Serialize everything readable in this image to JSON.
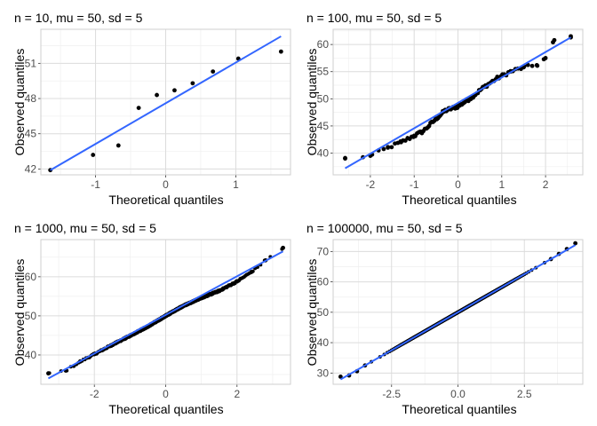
{
  "colors": {
    "point": "#000000",
    "line": "#3366ff",
    "grid_major": "#dcdcdc",
    "grid_minor": "#efefef",
    "panel_border": "#cfcfcf",
    "tick_text": "#4d4d4d"
  },
  "chart_data": [
    {
      "type": "scatter",
      "title": "n = 10, mu = 50, sd = 5",
      "xlabel": "Theoretical quantiles",
      "ylabel": "Observed quantiles",
      "xlim": [
        -1.78,
        1.78
      ],
      "ylim": [
        41.5,
        53.9
      ],
      "xticks": [
        -1,
        0,
        1
      ],
      "xtick_labels": [
        "-1",
        "0",
        "1"
      ],
      "yticks": [
        42,
        45,
        48,
        51
      ],
      "ytick_labels": [
        "42",
        "45",
        "48",
        "51"
      ],
      "grid": true,
      "x": [
        -1.645,
        -1.036,
        -0.674,
        -0.385,
        -0.126,
        0.126,
        0.385,
        0.674,
        1.036,
        1.645
      ],
      "y": [
        41.9,
        43.2,
        44.0,
        47.2,
        48.3,
        48.7,
        49.3,
        50.3,
        51.4,
        52.0
      ],
      "reference_line": {
        "x": [
          -1.645,
          1.645
        ],
        "y": [
          41.9,
          53.3
        ]
      }
    },
    {
      "type": "scatter",
      "title": "n = 100, mu = 50, sd = 5",
      "xlabel": "Theoretical quantiles",
      "ylabel": "Observed quantiles",
      "xlim": [
        -2.85,
        2.85
      ],
      "ylim": [
        36.0,
        62.8
      ],
      "xticks": [
        -2,
        -1,
        0,
        1,
        2
      ],
      "xtick_labels": [
        "-2",
        "-1",
        "0",
        "1",
        "2"
      ],
      "yticks": [
        40,
        45,
        50,
        55,
        60
      ],
      "ytick_labels": [
        "40",
        "45",
        "50",
        "55",
        "60"
      ],
      "grid": true,
      "sd": 5,
      "n_points": 100,
      "x": [
        -2.576,
        -2.0,
        -1.6,
        -1.3,
        -1.0,
        -0.8,
        -0.5,
        -0.3,
        0.0,
        0.3,
        0.6,
        0.9,
        1.2,
        1.5,
        1.8,
        2.0,
        2.2,
        2.576
      ],
      "y": [
        39.0,
        39.5,
        41.0,
        42.0,
        43.2,
        44.0,
        46.3,
        47.8,
        48.6,
        50.2,
        52.2,
        53.8,
        55.0,
        55.8,
        56.2,
        57.5,
        60.8,
        61.3
      ],
      "reference_line": {
        "x": [
          -2.576,
          2.576
        ],
        "y": [
          37.2,
          61.3
        ]
      }
    },
    {
      "type": "scatter",
      "title": "n = 1000, mu = 50, sd = 5",
      "xlabel": "Theoretical quantiles",
      "ylabel": "Observed quantiles",
      "xlim": [
        -3.5,
        3.5
      ],
      "ylim": [
        32.5,
        69.5
      ],
      "xticks": [
        -2,
        0,
        2
      ],
      "xtick_labels": [
        "-2",
        "0",
        "2"
      ],
      "yticks": [
        40,
        50,
        60
      ],
      "ytick_labels": [
        "40",
        "50",
        "60"
      ],
      "grid": true,
      "sd": 5,
      "n_points": 1000,
      "x": [
        -3.29,
        -2.8,
        -2.4,
        -2.0,
        -1.5,
        -1.0,
        -0.5,
        0.0,
        0.5,
        1.0,
        1.5,
        2.0,
        2.4,
        2.8,
        3.29
      ],
      "y": [
        35.3,
        36.0,
        38.3,
        40.2,
        42.6,
        44.9,
        47.3,
        50.0,
        52.6,
        54.6,
        56.4,
        58.8,
        61.2,
        64.2,
        67.4
      ],
      "reference_line": {
        "x": [
          -3.29,
          3.29
        ],
        "y": [
          34.0,
          66.5
        ]
      }
    },
    {
      "type": "scatter",
      "title": "n = 100000, mu = 50, sd = 5",
      "xlabel": "Theoretical quantiles",
      "ylabel": "Observed quantiles",
      "xlim": [
        -4.7,
        4.7
      ],
      "ylim": [
        26.3,
        73.9
      ],
      "xticks": [
        -2.5,
        0,
        2.5
      ],
      "xtick_labels": [
        "-2.5",
        "0.0",
        "2.5"
      ],
      "yticks": [
        30,
        40,
        50,
        60,
        70
      ],
      "ytick_labels": [
        "30",
        "40",
        "50",
        "60",
        "70"
      ],
      "grid": true,
      "sd": 5,
      "n_points": 100000,
      "x": [
        -4.42,
        -4.1,
        -3.8,
        -3.5,
        3.5,
        3.8,
        4.1,
        4.42
      ],
      "y": [
        28.8,
        29.2,
        30.6,
        32.5,
        67.5,
        69.2,
        70.8,
        72.7
      ],
      "reference_line": {
        "x": [
          -4.42,
          4.42
        ],
        "y": [
          27.9,
          72.1
        ]
      }
    }
  ]
}
